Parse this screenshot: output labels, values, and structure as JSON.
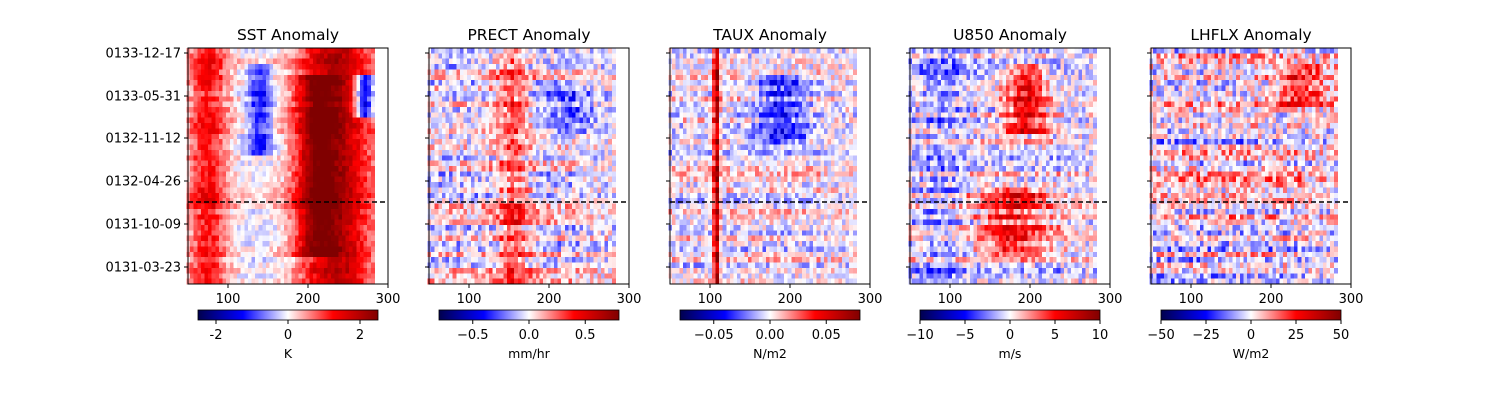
{
  "chart_data": [
    {
      "type": "heatmap",
      "title": "SST Anomaly",
      "xticks": [
        100,
        200,
        300
      ],
      "xlim": [
        50,
        300
      ],
      "yticks": [
        "0133-12-17",
        "0133-05-31",
        "0132-11-12",
        "0132-04-26",
        "0131-10-09",
        "0131-03-23"
      ],
      "hline_date": "0131-12-26",
      "colorbar": {
        "label": "K",
        "ticks": [
          -2,
          0,
          2
        ],
        "range": [
          -2.5,
          2.5
        ],
        "colormap": "seismic"
      },
      "fields": [
        {
          "center": 235,
          "width": 45,
          "from": 0.0,
          "to": 1.0,
          "amp": 0.8
        },
        {
          "center": 75,
          "width": 25,
          "from": 0.0,
          "to": 1.0,
          "amp": 0.5
        },
        {
          "center": 140,
          "width": 15,
          "from": 0.05,
          "to": 0.45,
          "amp": -0.45
        },
        {
          "center": 210,
          "width": 25,
          "from": 0.1,
          "to": 0.9,
          "amp": 0.5
        },
        {
          "center": 270,
          "width": 12,
          "from": 0.1,
          "to": 0.28,
          "amp": -0.9
        }
      ],
      "noise_amp": 0.3,
      "seed": 3
    },
    {
      "type": "heatmap",
      "title": "PRECT Anomaly",
      "xticks": [
        100,
        200,
        300
      ],
      "xlim": [
        50,
        300
      ],
      "yticks": [],
      "hline_date": "0131-12-26",
      "colorbar": {
        "label": "mm/hr",
        "ticks": [
          "−0.5",
          "0.0",
          "0.5"
        ],
        "range": [
          -0.8,
          0.8
        ],
        "colormap": "seismic"
      },
      "fields": [
        {
          "center": 155,
          "width": 20,
          "from": 0.0,
          "to": 1.0,
          "amp": 0.35
        },
        {
          "center": 230,
          "width": 35,
          "from": 0.15,
          "to": 0.35,
          "amp": -0.25
        }
      ],
      "noise_amp": 0.55,
      "seed": 11
    },
    {
      "type": "heatmap",
      "title": "TAUX Anomaly",
      "xticks": [
        100,
        200,
        300
      ],
      "xlim": [
        50,
        300
      ],
      "yticks": [],
      "hline_date": "0131-12-26",
      "colorbar": {
        "label": "N/m2",
        "ticks": [
          "−0.05",
          "0.00",
          "0.05"
        ],
        "range": [
          -0.08,
          0.08
        ],
        "colormap": "seismic"
      },
      "fields": [
        {
          "center": 108,
          "width": 4,
          "from": 0.0,
          "to": 1.0,
          "amp": 0.85
        },
        {
          "center": 190,
          "width": 30,
          "from": 0.1,
          "to": 0.4,
          "amp": -0.4
        }
      ],
      "noise_amp": 0.5,
      "seed": 23
    },
    {
      "type": "heatmap",
      "title": "U850 Anomaly",
      "xticks": [
        100,
        200,
        300
      ],
      "xlim": [
        50,
        300
      ],
      "yticks": [],
      "hline_date": "0131-12-26",
      "colorbar": {
        "label": "m/s",
        "ticks": [
          "−10",
          "−5",
          "0",
          "5",
          "10"
        ],
        "range": [
          -10,
          10
        ],
        "colormap": "seismic"
      },
      "fields": [
        {
          "center": 195,
          "width": 25,
          "from": 0.05,
          "to": 0.35,
          "amp": 0.55
        },
        {
          "center": 180,
          "width": 45,
          "from": 0.6,
          "to": 0.9,
          "amp": 0.45
        },
        {
          "center": 90,
          "width": 30,
          "from": 0.0,
          "to": 1.0,
          "amp": -0.15
        }
      ],
      "noise_amp": 0.55,
      "seed": 37
    },
    {
      "type": "heatmap",
      "title": "LHFLX Anomaly",
      "xticks": [
        100,
        200,
        300
      ],
      "xlim": [
        50,
        300
      ],
      "yticks": [],
      "hline_date": "0131-12-26",
      "colorbar": {
        "label": "W/m2",
        "ticks": [
          "−50",
          "−25",
          "0",
          "25",
          "50"
        ],
        "range": [
          -50,
          50
        ],
        "colormap": "seismic"
      },
      "fields": [
        {
          "center": 240,
          "width": 35,
          "from": 0.05,
          "to": 0.25,
          "amp": 0.4
        }
      ],
      "noise_amp": 0.7,
      "seed": 51
    }
  ]
}
